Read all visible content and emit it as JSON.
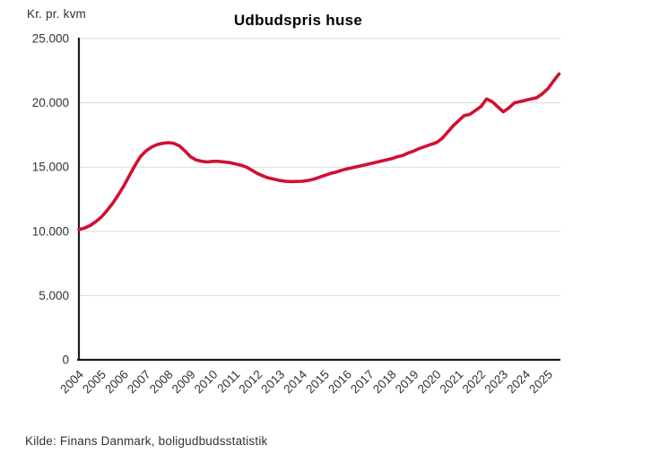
{
  "header": {
    "unit_label": "Kr. pr. kvm",
    "title": "Udbudspris huse"
  },
  "footer": {
    "source": "Kilde: Finans Danmark, boligudbudsstatistik"
  },
  "chart_data": {
    "type": "line",
    "title": "Udbudspris huse",
    "ylabel": "Kr. pr. kvm",
    "xlabel": "",
    "x_range": [
      2004,
      2025.56
    ],
    "ylim": [
      0,
      25000
    ],
    "grid": true,
    "legend": "none",
    "line_color": "#D01032",
    "axis_color": "#1a1a1a",
    "grid_color": "#d9d9d9",
    "tick_label_color": "#333333",
    "y_ticks": [
      {
        "v": 0,
        "label": "0"
      },
      {
        "v": 5000,
        "label": "5.000"
      },
      {
        "v": 10000,
        "label": "10.000"
      },
      {
        "v": 15000,
        "label": "15.000"
      },
      {
        "v": 20000,
        "label": "20.000"
      },
      {
        "v": 25000,
        "label": "25.000"
      }
    ],
    "x_ticks": [
      {
        "v": 2004,
        "label": "2004"
      },
      {
        "v": 2005,
        "label": "2005"
      },
      {
        "v": 2006,
        "label": "2006"
      },
      {
        "v": 2007,
        "label": "2007"
      },
      {
        "v": 2008,
        "label": "2008"
      },
      {
        "v": 2009,
        "label": "2009"
      },
      {
        "v": 2010,
        "label": "2010"
      },
      {
        "v": 2011,
        "label": "2011"
      },
      {
        "v": 2012,
        "label": "2012"
      },
      {
        "v": 2013,
        "label": "2013"
      },
      {
        "v": 2014,
        "label": "2014"
      },
      {
        "v": 2015,
        "label": "2015"
      },
      {
        "v": 2016,
        "label": "2016"
      },
      {
        "v": 2017,
        "label": "2017"
      },
      {
        "v": 2018,
        "label": "2018"
      },
      {
        "v": 2019,
        "label": "2019"
      },
      {
        "v": 2020,
        "label": "2020"
      },
      {
        "v": 2021,
        "label": "2021"
      },
      {
        "v": 2022,
        "label": "2022"
      },
      {
        "v": 2023,
        "label": "2023"
      },
      {
        "v": 2024,
        "label": "2024"
      },
      {
        "v": 2025,
        "label": "2025"
      }
    ],
    "series": [
      {
        "name": "Udbudspris huse",
        "x": [
          2004.0,
          2004.25,
          2004.5,
          2004.75,
          2005.0,
          2005.25,
          2005.5,
          2005.75,
          2006.0,
          2006.25,
          2006.5,
          2006.75,
          2007.0,
          2007.25,
          2007.5,
          2007.75,
          2008.0,
          2008.25,
          2008.5,
          2008.75,
          2009.0,
          2009.25,
          2009.5,
          2009.75,
          2010.0,
          2010.25,
          2010.5,
          2010.75,
          2011.0,
          2011.25,
          2011.5,
          2011.75,
          2012.0,
          2012.25,
          2012.5,
          2012.75,
          2013.0,
          2013.25,
          2013.5,
          2013.75,
          2014.0,
          2014.25,
          2014.5,
          2014.75,
          2015.0,
          2015.25,
          2015.5,
          2015.75,
          2016.0,
          2016.25,
          2016.5,
          2016.75,
          2017.0,
          2017.25,
          2017.5,
          2017.75,
          2018.0,
          2018.25,
          2018.5,
          2018.75,
          2019.0,
          2019.25,
          2019.5,
          2019.75,
          2020.0,
          2020.25,
          2020.5,
          2020.75,
          2021.0,
          2021.25,
          2021.5,
          2021.75,
          2022.0,
          2022.25,
          2022.5,
          2022.75,
          2023.0,
          2023.25,
          2023.5,
          2023.75,
          2024.0,
          2024.25,
          2024.5,
          2024.75,
          2025.0,
          2025.25,
          2025.5
        ],
        "values": [
          10150,
          10250,
          10450,
          10750,
          11100,
          11600,
          12150,
          12800,
          13500,
          14300,
          15100,
          15800,
          16250,
          16550,
          16750,
          16850,
          16900,
          16850,
          16650,
          16250,
          15800,
          15550,
          15450,
          15400,
          15450,
          15450,
          15400,
          15350,
          15250,
          15150,
          15000,
          14750,
          14500,
          14300,
          14150,
          14050,
          13950,
          13900,
          13870,
          13880,
          13900,
          13950,
          14050,
          14200,
          14350,
          14500,
          14600,
          14750,
          14850,
          14950,
          15050,
          15150,
          15250,
          15350,
          15450,
          15550,
          15650,
          15800,
          15900,
          16100,
          16250,
          16450,
          16600,
          16750,
          16900,
          17200,
          17700,
          18200,
          18600,
          19000,
          19100,
          19400,
          19700,
          20300,
          20100,
          19700,
          19300,
          19600,
          20000,
          20100,
          20200,
          20300,
          20400,
          20700,
          21100,
          21700,
          22250
        ]
      }
    ]
  }
}
